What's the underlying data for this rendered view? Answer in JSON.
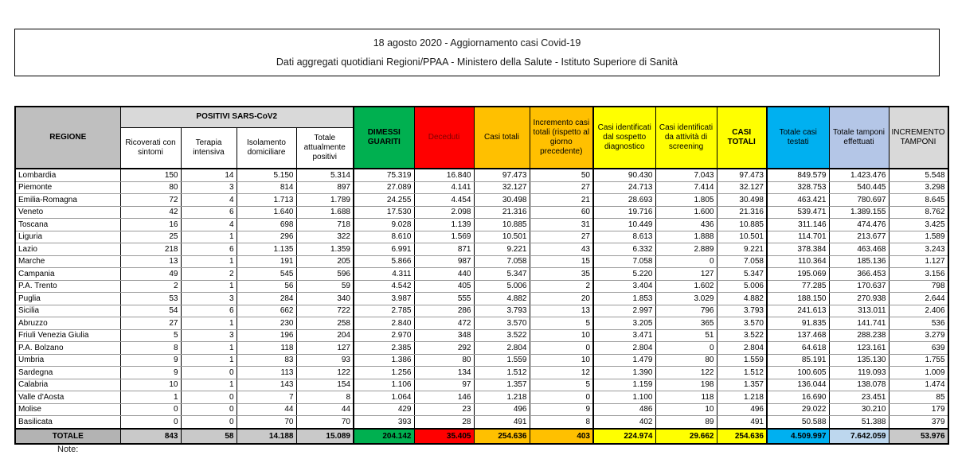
{
  "title": {
    "line1": "18 agosto 2020 - Aggiornamento casi Covid-19",
    "line2": "Dati aggregati quotidiani Regioni/PPAA - Ministero della Salute - Istituto Superiore di Sanità"
  },
  "note_label": "Note:",
  "colors": {
    "green": "#00b050",
    "red": "#ff0000",
    "orange": "#ffc000",
    "yellow": "#ffff00",
    "cyan": "#00b0f0",
    "periwinkle": "#b4c6e7",
    "light_blue": "#bdd7ee",
    "header_gray": "#bfbfbf",
    "light_gray": "#d9d9d9"
  },
  "table": {
    "headers": {
      "regione": "REGIONE",
      "positivi_group": "POSITIVI SARS-CoV2",
      "sub": [
        "Ricoverati con sintomi",
        "Terapia intensiva",
        "Isolamento domiciliare",
        "Totale attualmente positivi"
      ],
      "dimessi": "DIMESSI GUARITI",
      "deceduti": "Deceduti",
      "casi_totali": "Casi totali",
      "incremento_casi": "Incremento casi totali (rispetto al giorno precedente)",
      "sospetto": "Casi identificati dal sospetto diagnostico",
      "screening": "Casi identificati da attività di screening",
      "casi_totali_caps": "CASI TOTALI",
      "casi_testati": "Totale casi testati",
      "tamponi": "Totale tamponi effettuati",
      "incremento_tamponi": "INCREMENTO TAMPONI"
    },
    "rows": [
      {
        "regione": "Lombardia",
        "values": [
          "150",
          "14",
          "5.150",
          "5.314",
          "75.319",
          "16.840",
          "97.473",
          "50",
          "90.430",
          "7.043",
          "97.473",
          "849.579",
          "1.423.476",
          "5.548"
        ]
      },
      {
        "regione": "Piemonte",
        "values": [
          "80",
          "3",
          "814",
          "897",
          "27.089",
          "4.141",
          "32.127",
          "27",
          "24.713",
          "7.414",
          "32.127",
          "328.753",
          "540.445",
          "3.298"
        ]
      },
      {
        "regione": "Emilia-Romagna",
        "values": [
          "72",
          "4",
          "1.713",
          "1.789",
          "24.255",
          "4.454",
          "30.498",
          "21",
          "28.693",
          "1.805",
          "30.498",
          "463.421",
          "780.697",
          "8.645"
        ]
      },
      {
        "regione": "Veneto",
        "values": [
          "42",
          "6",
          "1.640",
          "1.688",
          "17.530",
          "2.098",
          "21.316",
          "60",
          "19.716",
          "1.600",
          "21.316",
          "539.471",
          "1.389.155",
          "8.762"
        ]
      },
      {
        "regione": "Toscana",
        "values": [
          "16",
          "4",
          "698",
          "718",
          "9.028",
          "1.139",
          "10.885",
          "31",
          "10.449",
          "436",
          "10.885",
          "311.146",
          "474.476",
          "3.425"
        ]
      },
      {
        "regione": "Liguria",
        "values": [
          "25",
          "1",
          "296",
          "322",
          "8.610",
          "1.569",
          "10.501",
          "27",
          "8.613",
          "1.888",
          "10.501",
          "114.701",
          "213.677",
          "1.589"
        ]
      },
      {
        "regione": "Lazio",
        "values": [
          "218",
          "6",
          "1.135",
          "1.359",
          "6.991",
          "871",
          "9.221",
          "43",
          "6.332",
          "2.889",
          "9.221",
          "378.384",
          "463.468",
          "3.243"
        ]
      },
      {
        "regione": "Marche",
        "values": [
          "13",
          "1",
          "191",
          "205",
          "5.866",
          "987",
          "7.058",
          "15",
          "7.058",
          "0",
          "7.058",
          "110.364",
          "185.136",
          "1.127"
        ]
      },
      {
        "regione": "Campania",
        "values": [
          "49",
          "2",
          "545",
          "596",
          "4.311",
          "440",
          "5.347",
          "35",
          "5.220",
          "127",
          "5.347",
          "195.069",
          "366.453",
          "3.156"
        ]
      },
      {
        "regione": "P.A. Trento",
        "values": [
          "2",
          "1",
          "56",
          "59",
          "4.542",
          "405",
          "5.006",
          "2",
          "3.404",
          "1.602",
          "5.006",
          "77.285",
          "170.637",
          "798"
        ]
      },
      {
        "regione": "Puglia",
        "values": [
          "53",
          "3",
          "284",
          "340",
          "3.987",
          "555",
          "4.882",
          "20",
          "1.853",
          "3.029",
          "4.882",
          "188.150",
          "270.938",
          "2.644"
        ]
      },
      {
        "regione": "Sicilia",
        "values": [
          "54",
          "6",
          "662",
          "722",
          "2.785",
          "286",
          "3.793",
          "13",
          "2.997",
          "796",
          "3.793",
          "241.613",
          "313.011",
          "2.406"
        ]
      },
      {
        "regione": "Abruzzo",
        "values": [
          "27",
          "1",
          "230",
          "258",
          "2.840",
          "472",
          "3.570",
          "5",
          "3.205",
          "365",
          "3.570",
          "91.835",
          "141.741",
          "536"
        ]
      },
      {
        "regione": "Friuli Venezia Giulia",
        "values": [
          "5",
          "3",
          "196",
          "204",
          "2.970",
          "348",
          "3.522",
          "10",
          "3.471",
          "51",
          "3.522",
          "137.468",
          "288.238",
          "3.279"
        ]
      },
      {
        "regione": "P.A. Bolzano",
        "values": [
          "8",
          "1",
          "118",
          "127",
          "2.385",
          "292",
          "2.804",
          "0",
          "2.804",
          "0",
          "2.804",
          "64.618",
          "123.161",
          "639"
        ]
      },
      {
        "regione": "Umbria",
        "values": [
          "9",
          "1",
          "83",
          "93",
          "1.386",
          "80",
          "1.559",
          "10",
          "1.479",
          "80",
          "1.559",
          "85.191",
          "135.130",
          "1.755"
        ]
      },
      {
        "regione": "Sardegna",
        "values": [
          "9",
          "0",
          "113",
          "122",
          "1.256",
          "134",
          "1.512",
          "12",
          "1.390",
          "122",
          "1.512",
          "100.605",
          "119.093",
          "1.009"
        ]
      },
      {
        "regione": "Calabria",
        "values": [
          "10",
          "1",
          "143",
          "154",
          "1.106",
          "97",
          "1.357",
          "5",
          "1.159",
          "198",
          "1.357",
          "136.044",
          "138.078",
          "1.474"
        ]
      },
      {
        "regione": "Valle d'Aosta",
        "values": [
          "1",
          "0",
          "7",
          "8",
          "1.064",
          "146",
          "1.218",
          "0",
          "1.100",
          "118",
          "1.218",
          "16.690",
          "23.451",
          "85"
        ]
      },
      {
        "regione": "Molise",
        "values": [
          "0",
          "0",
          "44",
          "44",
          "429",
          "23",
          "496",
          "9",
          "486",
          "10",
          "496",
          "29.022",
          "30.210",
          "179"
        ]
      },
      {
        "regione": "Basilicata",
        "values": [
          "0",
          "0",
          "70",
          "70",
          "393",
          "28",
          "491",
          "8",
          "402",
          "89",
          "491",
          "50.588",
          "51.388",
          "379"
        ]
      }
    ],
    "total": {
      "label": "TOTALE",
      "values": [
        "843",
        "58",
        "14.188",
        "15.089",
        "204.142",
        "35.405",
        "254.636",
        "403",
        "224.974",
        "29.662",
        "254.636",
        "4.509.997",
        "7.642.059",
        "53.976"
      ]
    }
  }
}
